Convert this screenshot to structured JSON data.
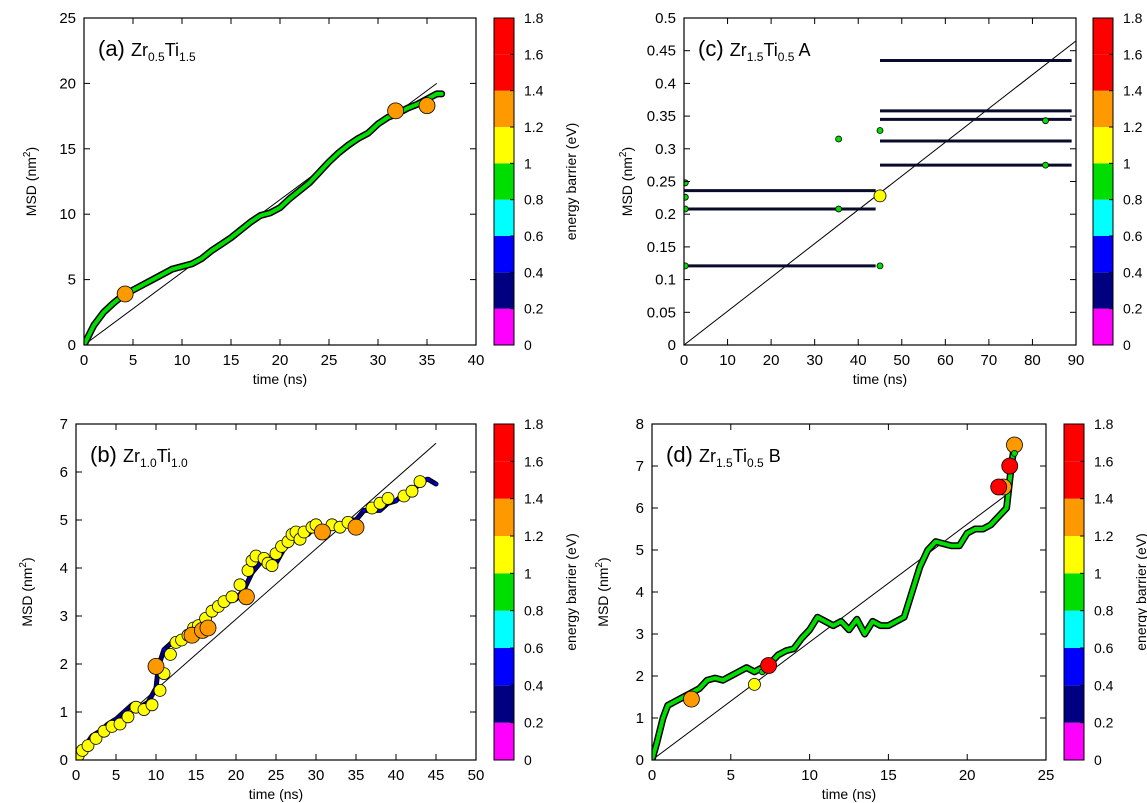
{
  "chart_data": [
    {
      "type": "scatter",
      "panel_label": "(a)",
      "title": {
        "base": "Zr",
        "sub1": "0.5",
        "mid": "Ti",
        "sub2": "1.5",
        "suffix": ""
      },
      "xlabel": "time (ns)",
      "ylabel": {
        "base": "MSD (nm",
        "sup": "2",
        "end": ")"
      },
      "xlim": [
        0,
        40
      ],
      "ylim": [
        0,
        25
      ],
      "xticks": [
        0,
        5,
        10,
        15,
        20,
        25,
        30,
        35,
        40
      ],
      "yticks": [
        0,
        5,
        10,
        15,
        20,
        25
      ],
      "reference_line": {
        "x": [
          0,
          36
        ],
        "y": [
          0,
          20
        ]
      },
      "series": [
        {
          "marker": "trajectory",
          "energy": 0.95,
          "x": [
            0,
            1,
            2,
            3,
            4,
            5,
            6,
            7,
            8,
            9,
            10,
            11,
            12,
            13,
            14,
            15,
            16,
            17,
            18,
            19,
            20,
            21,
            22,
            23,
            24,
            25,
            26,
            27,
            28,
            29,
            30,
            31,
            32,
            33,
            34,
            35,
            36,
            36.5
          ],
          "y": [
            0,
            1.5,
            2.5,
            3.2,
            3.8,
            4.2,
            4.6,
            5.0,
            5.4,
            5.8,
            6.0,
            6.2,
            6.6,
            7.2,
            7.7,
            8.2,
            8.8,
            9.4,
            9.9,
            10.1,
            10.5,
            11.2,
            11.8,
            12.4,
            13.2,
            14.0,
            14.7,
            15.3,
            15.8,
            16.2,
            16.9,
            17.4,
            17.7,
            18.1,
            18.4,
            18.8,
            19.2,
            19.2
          ]
        },
        {
          "marker": "circles",
          "energy": [
            1.4,
            1.4,
            1.4
          ],
          "x": [
            4.2,
            31.8,
            35
          ],
          "y": [
            3.9,
            17.9,
            18.3
          ]
        }
      ]
    },
    {
      "type": "scatter",
      "panel_label": "(b)",
      "title": {
        "base": "Zr",
        "sub1": "1.0",
        "mid": "Ti",
        "sub2": "1.0",
        "suffix": ""
      },
      "xlabel": "time (ns)",
      "ylabel": {
        "base": "MSD (nm",
        "sup": "2",
        "end": ")"
      },
      "xlim": [
        0,
        50
      ],
      "ylim": [
        0,
        7
      ],
      "xticks": [
        0,
        5,
        10,
        15,
        20,
        25,
        30,
        35,
        40,
        45,
        50
      ],
      "yticks": [
        0,
        1,
        2,
        3,
        4,
        5,
        6,
        7
      ],
      "reference_line": {
        "x": [
          0,
          45
        ],
        "y": [
          0,
          6.6
        ]
      },
      "series": [
        {
          "marker": "path",
          "energy": 0.5,
          "x": [
            0,
            0.5,
            1,
            2,
            3,
            4,
            5,
            6,
            7,
            8,
            9,
            10,
            10.3,
            11,
            12,
            13,
            14,
            15,
            16,
            17,
            18,
            19,
            20,
            21,
            22,
            23,
            24,
            25,
            26,
            27,
            28,
            29,
            30,
            31,
            32,
            33,
            34,
            35,
            36,
            37,
            38,
            39,
            40,
            41,
            42,
            43,
            44,
            45
          ],
          "y": [
            0,
            0.15,
            0.25,
            0.5,
            0.6,
            0.75,
            0.85,
            1.0,
            1.15,
            1.1,
            1.2,
            1.5,
            1.95,
            2.3,
            2.45,
            2.5,
            2.65,
            2.8,
            2.9,
            3.1,
            3.2,
            3.3,
            3.35,
            3.55,
            3.9,
            4.1,
            4.15,
            4.1,
            4.4,
            4.55,
            4.7,
            4.7,
            4.9,
            4.7,
            4.9,
            4.85,
            5.0,
            5.0,
            5.2,
            5.2,
            5.2,
            5.35,
            5.4,
            5.55,
            5.55,
            5.8,
            5.85,
            5.75
          ]
        },
        {
          "marker": "circles",
          "energy": [
            1.2,
            1.2,
            1.2,
            1.2,
            1.2,
            1.2,
            1.2,
            1.2,
            1.2,
            1.2,
            1.2,
            1.2,
            1.2,
            1.2,
            1.2,
            1.2,
            1.2,
            1.2,
            1.2,
            1.2,
            1.2,
            1.2,
            1.2,
            1.2,
            1.2,
            1.2,
            1.2,
            1.2,
            1.2,
            1.2,
            1.2,
            1.2,
            1.2,
            1.2,
            1.2,
            1.2,
            1.2,
            1.2,
            1.2,
            1.2,
            1.2,
            1.2,
            1.2,
            1.2,
            1.2,
            1.2,
            1.2,
            1.2,
            1.2,
            1.2,
            1.4,
            1.4,
            1.4,
            1.4,
            1.4,
            1.4,
            1.4
          ],
          "x": [
            0.3,
            0.8,
            1.5,
            2.5,
            3.5,
            4.5,
            5.5,
            6.5,
            7.5,
            8.5,
            9.5,
            10.5,
            11,
            11.8,
            12.5,
            13.2,
            14,
            14.7,
            15.3,
            16.2,
            17,
            17.8,
            18.5,
            19.5,
            20.5,
            21.5,
            22,
            22.5,
            23.5,
            24,
            24.5,
            25,
            25.7,
            26.5,
            27,
            27.5,
            28,
            28.5,
            29.5,
            30,
            31,
            32,
            33,
            34,
            37,
            38,
            39,
            41,
            42,
            43,
            10,
            14.5,
            15.8,
            16.5,
            21.3,
            30.8,
            35
          ],
          "y": [
            0.1,
            0.2,
            0.3,
            0.45,
            0.6,
            0.7,
            0.75,
            0.9,
            1.1,
            1.05,
            1.15,
            1.45,
            1.8,
            2.2,
            2.45,
            2.5,
            2.6,
            2.75,
            2.8,
            2.95,
            3.1,
            3.2,
            3.3,
            3.4,
            3.65,
            3.95,
            4.15,
            4.25,
            4.2,
            4.1,
            4.05,
            4.3,
            4.45,
            4.55,
            4.7,
            4.75,
            4.6,
            4.75,
            4.85,
            4.9,
            4.75,
            4.9,
            4.85,
            4.95,
            5.25,
            5.35,
            5.45,
            5.5,
            5.6,
            5.8,
            1.95,
            2.6,
            2.7,
            2.75,
            3.4,
            4.75,
            4.85
          ]
        }
      ]
    },
    {
      "type": "scatter",
      "panel_label": "(c)",
      "title": {
        "base": "Zr",
        "sub1": "1.5",
        "mid": "Ti",
        "sub2": "0.5",
        "suffix": " A"
      },
      "xlabel": "time (ns)",
      "ylabel": {
        "base": "MSD (nm",
        "sup": "2",
        "end": ")"
      },
      "xlim": [
        0,
        90
      ],
      "ylim": [
        0,
        0.5
      ],
      "xticks": [
        0,
        10,
        20,
        30,
        40,
        50,
        60,
        70,
        80,
        90
      ],
      "yticks": [
        0,
        0.05,
        0.1,
        0.15,
        0.2,
        0.25,
        0.3,
        0.35,
        0.4,
        0.45,
        0.5
      ],
      "ytick_labels": [
        "0",
        "0.05",
        "0.1",
        "0.15",
        "0.2",
        "0.25",
        "0.3",
        "0.35",
        "0.4",
        "0.45",
        "0.5"
      ],
      "reference_line": {
        "x": [
          0,
          90
        ],
        "y": [
          0,
          0.465
        ]
      },
      "series": [
        {
          "marker": "hlines",
          "energy": 0.3,
          "segments": [
            [
              0,
              44,
              0.121
            ],
            [
              0,
              44,
              0.208
            ],
            [
              0,
              44,
              0.236
            ],
            [
              45,
              89,
              0.275
            ],
            [
              45,
              89,
              0.312
            ],
            [
              45,
              89,
              0.345
            ],
            [
              45,
              89,
              0.358
            ],
            [
              45,
              89,
              0.435
            ]
          ]
        },
        {
          "marker": "circles",
          "energy": [
            1.0,
            1.0,
            1.0,
            1.0,
            1.0,
            1.0,
            1.0,
            1.0,
            1.0,
            1.0,
            1.2
          ],
          "x": [
            0.3,
            0.3,
            0.3,
            0.3,
            35.5,
            35.5,
            45,
            45,
            83,
            83,
            45
          ],
          "y": [
            0.248,
            0.226,
            0.208,
            0.121,
            0.315,
            0.208,
            0.328,
            0.121,
            0.343,
            0.275,
            0.228
          ]
        }
      ]
    },
    {
      "type": "scatter",
      "panel_label": "(d)",
      "title": {
        "base": "Zr",
        "sub1": "1.5",
        "mid": "Ti",
        "sub2": "0.5",
        "suffix": " B"
      },
      "xlabel": "time (ns)",
      "ylabel": {
        "base": "MSD (nm",
        "sup": "2",
        "end": ")"
      },
      "xlim": [
        0,
        25
      ],
      "ylim": [
        0,
        8
      ],
      "xticks": [
        0,
        5,
        10,
        15,
        20,
        25
      ],
      "yticks": [
        0,
        1,
        2,
        3,
        4,
        5,
        6,
        7,
        8
      ],
      "reference_line": {
        "x": [
          0,
          22.8
        ],
        "y": [
          0,
          6.4
        ]
      },
      "series": [
        {
          "marker": "trajectory",
          "energy": 0.9,
          "x": [
            0,
            0.3,
            0.7,
            1,
            1.5,
            2,
            2.5,
            3,
            3.5,
            4,
            4.5,
            5,
            5.5,
            6,
            6.5,
            7,
            7.5,
            8,
            8.5,
            9,
            9.5,
            10,
            10.5,
            11,
            11.5,
            12,
            12.5,
            13,
            13.5,
            14,
            14.5,
            15,
            15.5,
            16,
            16.5,
            17,
            17.5,
            18,
            18.5,
            19,
            19.5,
            20,
            20.5,
            21,
            21.5,
            22,
            22.5,
            22.8,
            23
          ],
          "y": [
            0,
            0.4,
            1.0,
            1.3,
            1.4,
            1.5,
            1.6,
            1.7,
            1.9,
            1.95,
            1.9,
            2.0,
            2.1,
            2.2,
            2.1,
            2.2,
            2.3,
            2.5,
            2.6,
            2.65,
            2.9,
            3.1,
            3.4,
            3.3,
            3.2,
            3.3,
            3.1,
            3.35,
            3.0,
            3.3,
            3.2,
            3.2,
            3.3,
            3.4,
            4.0,
            4.6,
            5.0,
            5.2,
            5.15,
            5.1,
            5.1,
            5.4,
            5.5,
            5.5,
            5.6,
            5.8,
            6.0,
            7.0,
            7.5
          ]
        },
        {
          "marker": "circles",
          "energy": [
            1.4,
            1.2,
            1.0,
            1.7,
            1.4,
            1.7,
            1.7,
            1.4,
            1.0
          ],
          "x": [
            2.5,
            6.5,
            7,
            7.4,
            22.3,
            22,
            22.7,
            23,
            23
          ],
          "y": [
            1.45,
            1.8,
            2.1,
            2.25,
            6.5,
            6.5,
            7.0,
            7.5,
            7.3
          ]
        }
      ]
    }
  ],
  "colorbar": {
    "label": "energy barrier (eV)",
    "ticks": [
      "0",
      "0.2",
      "0.4",
      "0.6",
      "0.8",
      "1",
      "1.2",
      "1.4",
      "1.6",
      "1.8"
    ],
    "colors": [
      "#ff00ff",
      "#000080",
      "#0000ff",
      "#00ffff",
      "#00dd00",
      "#ffff00",
      "#ff9900",
      "#ff0000"
    ],
    "bounds": [
      0.2,
      1.8
    ]
  }
}
